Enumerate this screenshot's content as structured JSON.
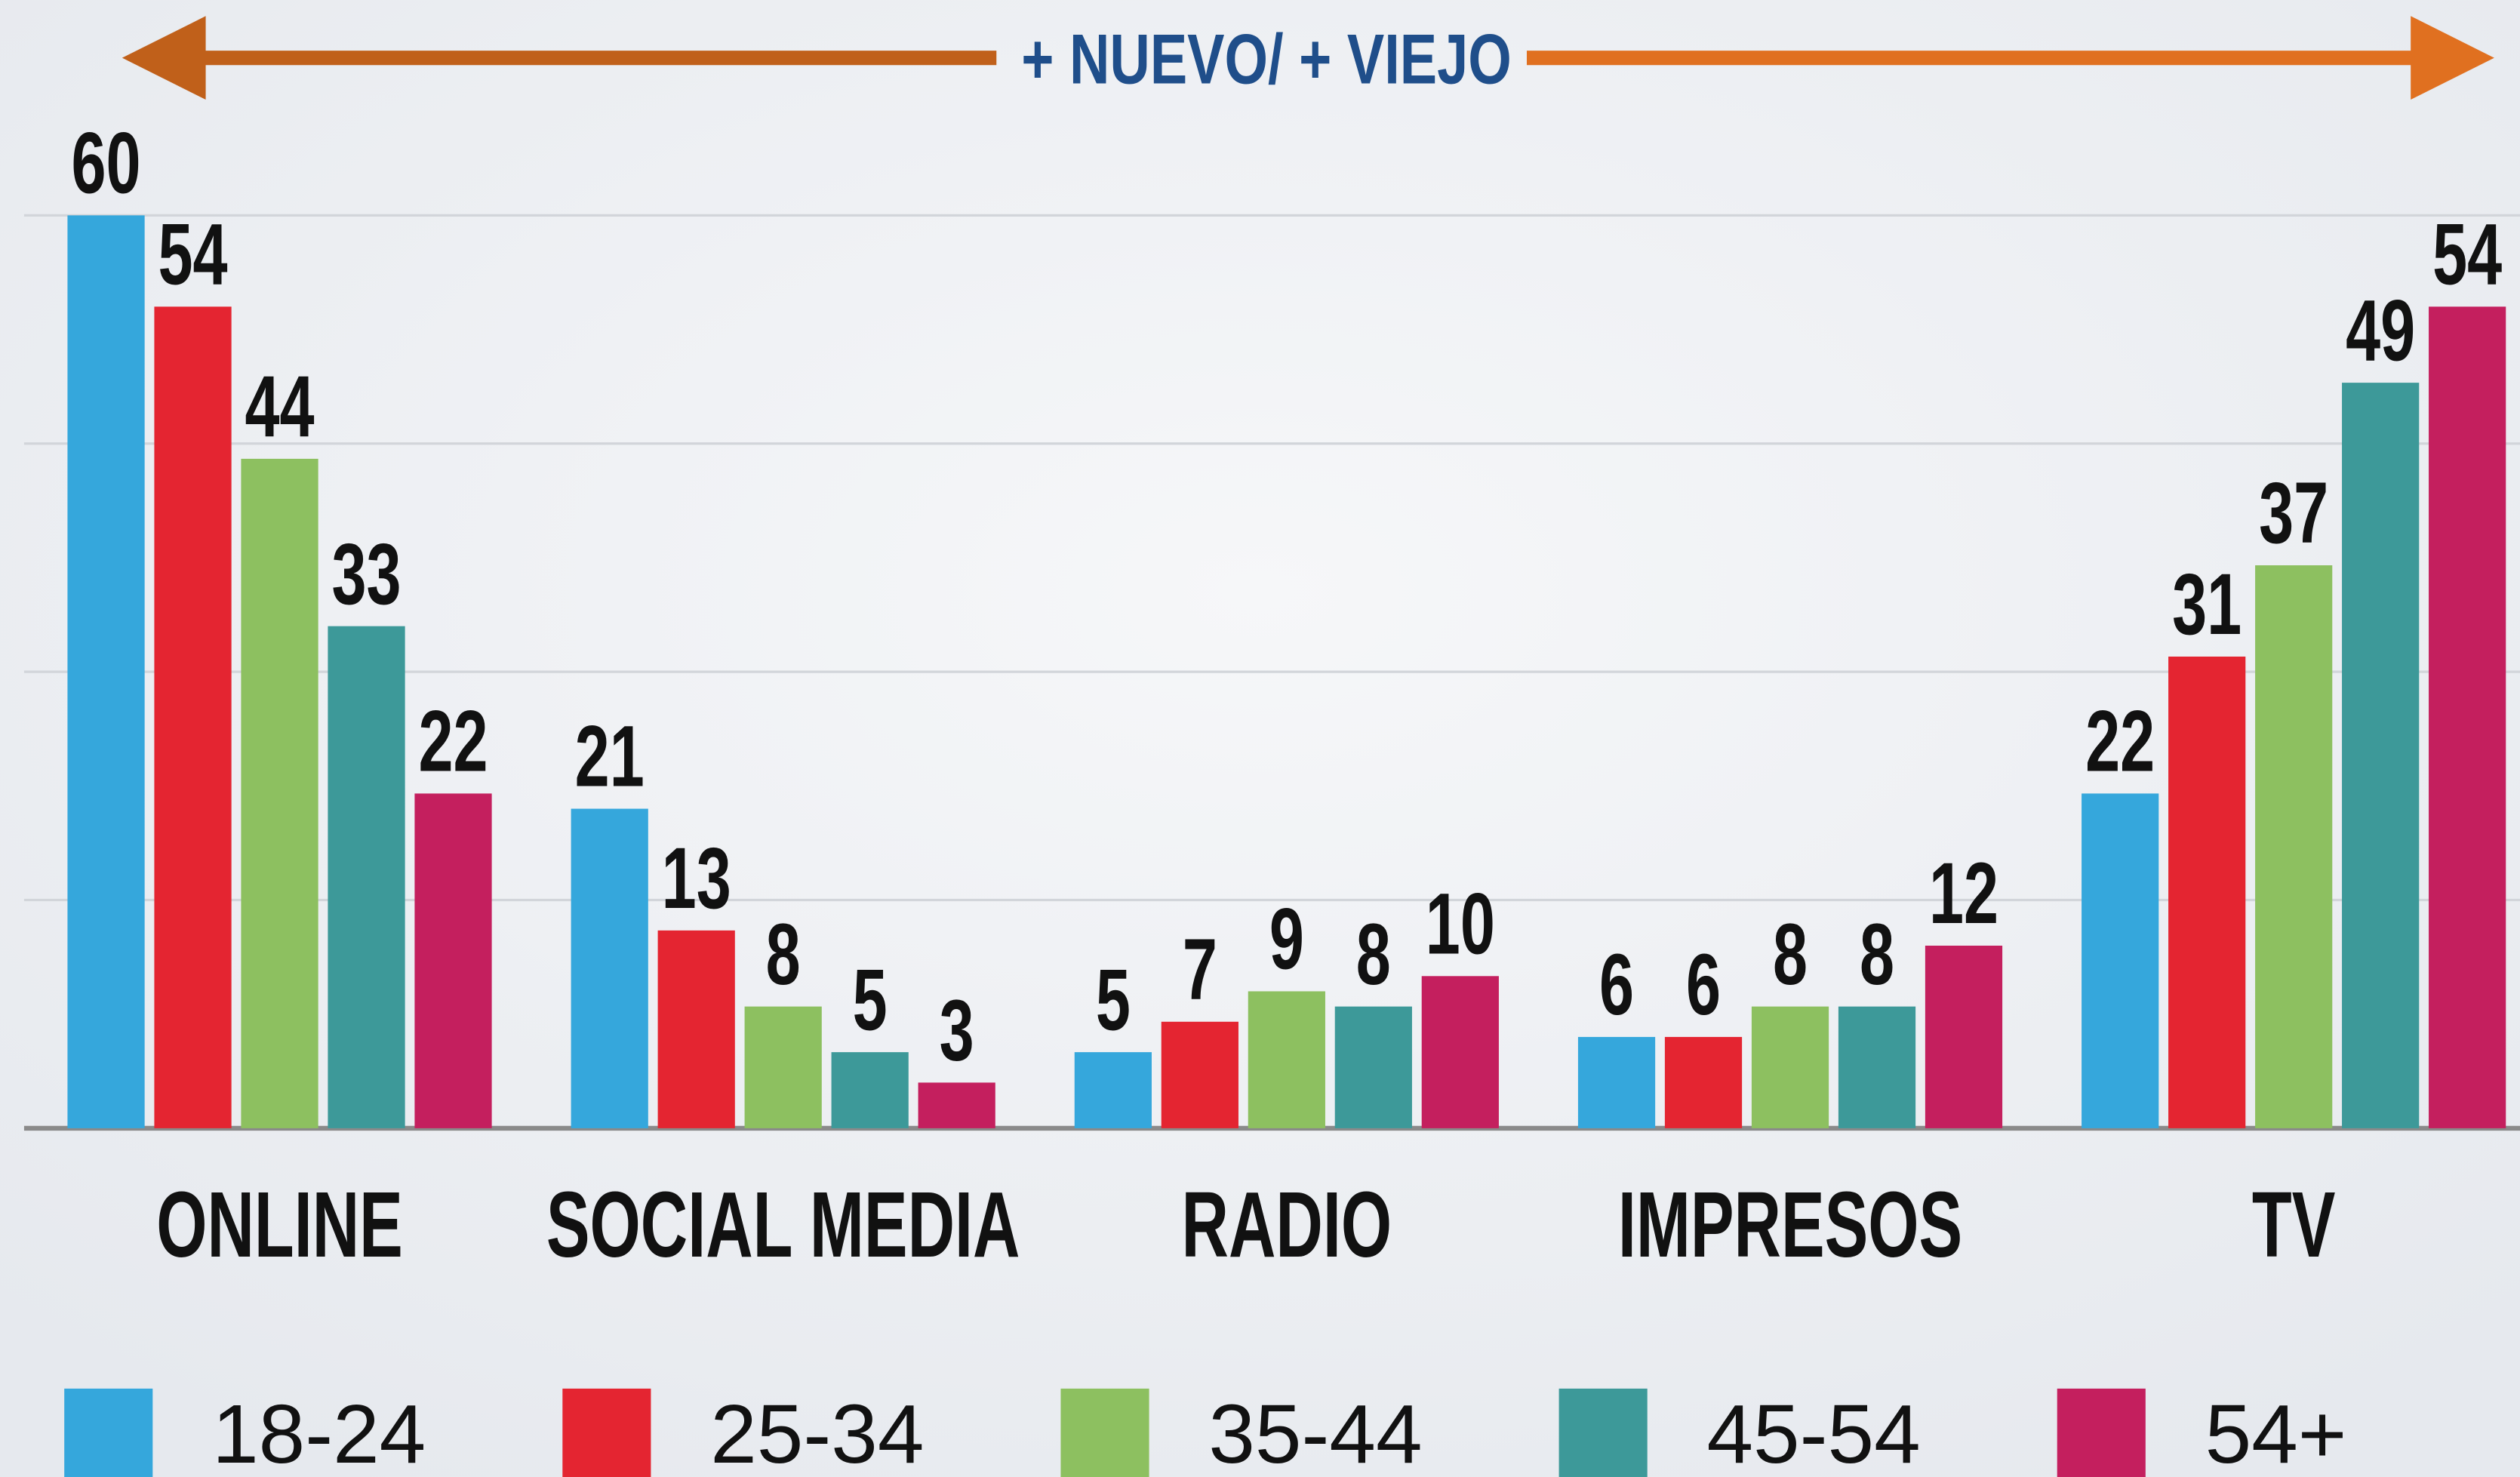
{
  "chart_data": {
    "type": "bar",
    "annotation": "+ NUEVO/ + VIEJO",
    "categories": [
      "ONLINE",
      "SOCIAL MEDIA",
      "RADIO",
      "IMPRESOS",
      "TV"
    ],
    "series": [
      {
        "name": "18-24",
        "color": "#35a7dc",
        "values": [
          60,
          21,
          5,
          6,
          22
        ]
      },
      {
        "name": "25-34",
        "color": "#e42531",
        "values": [
          54,
          13,
          7,
          6,
          31
        ]
      },
      {
        "name": "35-44",
        "color": "#8dc060",
        "values": [
          44,
          8,
          9,
          8,
          37
        ]
      },
      {
        "name": "45-54",
        "color": "#3d9999",
        "values": [
          33,
          5,
          8,
          8,
          49
        ]
      },
      {
        "name": "54+",
        "color": "#c41f5e",
        "values": [
          22,
          3,
          10,
          12,
          54
        ]
      }
    ],
    "ylim": [
      0,
      60
    ],
    "yticks": [
      0,
      15,
      30,
      45,
      60
    ],
    "grid": true,
    "legend": "bottom"
  }
}
